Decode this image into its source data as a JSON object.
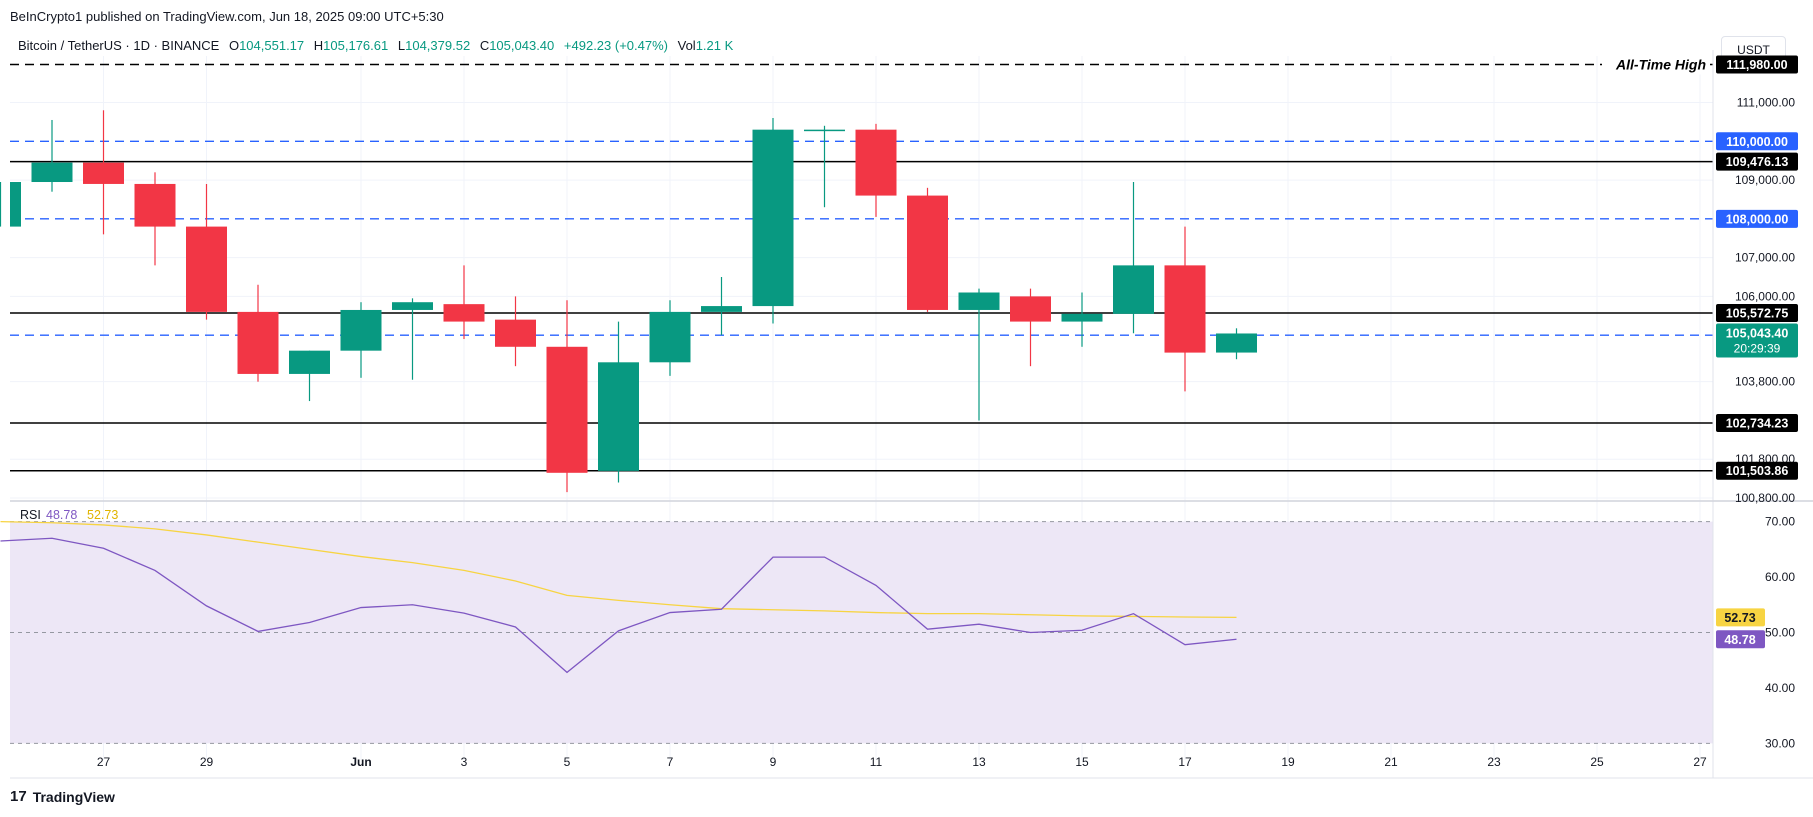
{
  "publisher_text": "BeInCrypto1 published on TradingView.com, Jun 18, 2025 09:00 UTC+5:30",
  "header": {
    "symbol": "Bitcoin / TetherUS · 1D · BINANCE",
    "open_label": "O",
    "open": "104,551.17",
    "high_label": "H",
    "high": "105,176.61",
    "low_label": "L",
    "low": "104,379.52",
    "close_label": "C",
    "close": "105,043.40",
    "change": "+492.23 (+0.47%)",
    "vol_label": "Vol",
    "vol": "1.21 K"
  },
  "currency": "USDT",
  "footer_brand": "TradingView",
  "colors": {
    "up": "#089981",
    "down": "#f23645",
    "blue_line": "#2962ff",
    "rsi": "#7e57c2",
    "rsi_ma": "#f7d442",
    "rsi_band": "#ede7f6"
  },
  "chart_data": {
    "type": "candlestick",
    "price_ylim": [
      100800,
      112200
    ],
    "x_ticks": [
      {
        "date": "2025-05-27",
        "label": "27"
      },
      {
        "date": "2025-05-29",
        "label": "29"
      },
      {
        "date": "2025-06-01",
        "label": "Jun"
      },
      {
        "date": "2025-06-03",
        "label": "3"
      },
      {
        "date": "2025-06-05",
        "label": "5"
      },
      {
        "date": "2025-06-07",
        "label": "7"
      },
      {
        "date": "2025-06-09",
        "label": "9"
      },
      {
        "date": "2025-06-11",
        "label": "11"
      },
      {
        "date": "2025-06-13",
        "label": "13"
      },
      {
        "date": "2025-06-15",
        "label": "15"
      },
      {
        "date": "2025-06-17",
        "label": "17"
      },
      {
        "date": "2025-06-19",
        "label": "19"
      },
      {
        "date": "2025-06-21",
        "label": "21"
      },
      {
        "date": "2025-06-23",
        "label": "23"
      },
      {
        "date": "2025-06-25",
        "label": "25"
      },
      {
        "date": "2025-06-27",
        "label": "27"
      }
    ],
    "price_ticks": [
      "111,000.00",
      "109,000.00",
      "107,000.00",
      "106,000.00",
      "103,800.00",
      "101,800.00",
      "100,800.00"
    ],
    "candles": [
      {
        "date": "2025-05-25",
        "open": 107800,
        "high": 108950,
        "low": 107800,
        "close": 108950
      },
      {
        "date": "2025-05-26",
        "open": 108950,
        "high": 110550,
        "low": 108700,
        "close": 109450
      },
      {
        "date": "2025-05-27",
        "open": 109450,
        "high": 110800,
        "low": 107600,
        "close": 108900
      },
      {
        "date": "2025-05-28",
        "open": 108900,
        "high": 109200,
        "low": 106800,
        "close": 107800
      },
      {
        "date": "2025-05-29",
        "open": 107800,
        "high": 108900,
        "low": 105400,
        "close": 105600
      },
      {
        "date": "2025-05-30",
        "open": 105600,
        "high": 106300,
        "low": 103800,
        "close": 104000
      },
      {
        "date": "2025-05-31",
        "open": 104000,
        "high": 104600,
        "low": 103300,
        "close": 104600
      },
      {
        "date": "2025-06-01",
        "open": 104600,
        "high": 105850,
        "low": 103900,
        "close": 105650
      },
      {
        "date": "2025-06-02",
        "open": 105650,
        "high": 105950,
        "low": 103850,
        "close": 105850
      },
      {
        "date": "2025-06-03",
        "open": 105800,
        "high": 106800,
        "low": 104900,
        "close": 105350
      },
      {
        "date": "2025-06-04",
        "open": 105400,
        "high": 106000,
        "low": 104200,
        "close": 104700
      },
      {
        "date": "2025-06-05",
        "open": 104700,
        "high": 105900,
        "low": 100950,
        "close": 101450
      },
      {
        "date": "2025-06-06",
        "open": 101500,
        "high": 105350,
        "low": 101200,
        "close": 104300
      },
      {
        "date": "2025-06-07",
        "open": 104300,
        "high": 105900,
        "low": 103950,
        "close": 105600
      },
      {
        "date": "2025-06-08",
        "open": 105600,
        "high": 106500,
        "low": 105000,
        "close": 105750
      },
      {
        "date": "2025-06-09",
        "open": 105750,
        "high": 110600,
        "low": 105300,
        "close": 110300
      },
      {
        "date": "2025-06-10",
        "open": 110300,
        "high": 110400,
        "low": 108300,
        "close": 110300
      },
      {
        "date": "2025-06-11",
        "open": 110300,
        "high": 110450,
        "low": 108050,
        "close": 108600
      },
      {
        "date": "2025-06-12",
        "open": 108600,
        "high": 108800,
        "low": 105600,
        "close": 105650
      },
      {
        "date": "2025-06-13",
        "open": 105650,
        "high": 106200,
        "low": 102800,
        "close": 106100
      },
      {
        "date": "2025-06-14",
        "open": 106000,
        "high": 106200,
        "low": 104200,
        "close": 105350
      },
      {
        "date": "2025-06-15",
        "open": 105350,
        "high": 106100,
        "low": 104700,
        "close": 105550
      },
      {
        "date": "2025-06-16",
        "open": 105550,
        "high": 108950,
        "low": 105050,
        "close": 106800
      },
      {
        "date": "2025-06-17",
        "open": 106800,
        "high": 107800,
        "low": 103550,
        "close": 104550
      },
      {
        "date": "2025-06-18",
        "open": 104551.17,
        "high": 105176.61,
        "low": 104379.52,
        "close": 105043.4
      }
    ],
    "levels": [
      {
        "value": 111980,
        "label": "111,980.00",
        "style": "dashed",
        "color": "#000000",
        "annotation": "All-Time High"
      },
      {
        "value": 110000,
        "label": "110,000.00",
        "style": "dashed",
        "color": "#2962ff"
      },
      {
        "value": 109476.13,
        "label": "109,476.13",
        "style": "solid",
        "color": "#000000"
      },
      {
        "value": 108000,
        "label": "108,000.00",
        "style": "dashed",
        "color": "#2962ff"
      },
      {
        "value": 105572.75,
        "label": "105,572.75",
        "style": "solid",
        "color": "#000000"
      },
      {
        "value": 105000,
        "label": "105,000.00",
        "style": "dashed",
        "color": "#2962ff"
      },
      {
        "value": 102734.23,
        "label": "102,734.23",
        "style": "solid",
        "color": "#000000"
      },
      {
        "value": 101503.86,
        "label": "101,503.86",
        "style": "solid",
        "color": "#000000"
      }
    ],
    "last_price": {
      "value": 105043.4,
      "label": "105,043.40",
      "countdown": "20:29:39"
    },
    "rsi": {
      "title": "RSI",
      "value": "48.78",
      "ma_value": "52.73",
      "ylim": [
        27,
        73
      ],
      "band": [
        30,
        70
      ],
      "ticks": [
        "70.00",
        "60.00",
        "50.00",
        "40.00",
        "30.00"
      ],
      "dates": [
        "2025-05-25",
        "2025-05-26",
        "2025-05-27",
        "2025-05-28",
        "2025-05-29",
        "2025-05-30",
        "2025-05-31",
        "2025-06-01",
        "2025-06-02",
        "2025-06-03",
        "2025-06-04",
        "2025-06-05",
        "2025-06-06",
        "2025-06-07",
        "2025-06-08",
        "2025-06-09",
        "2025-06-10",
        "2025-06-11",
        "2025-06-12",
        "2025-06-13",
        "2025-06-14",
        "2025-06-15",
        "2025-06-16",
        "2025-06-17",
        "2025-06-18"
      ],
      "values": [
        66.5,
        67.0,
        65.2,
        61.2,
        54.8,
        50.2,
        51.8,
        54.5,
        55.0,
        53.5,
        51.0,
        42.8,
        50.3,
        53.6,
        54.2,
        63.6,
        63.6,
        58.5,
        50.6,
        51.5,
        50.0,
        50.4,
        53.4,
        47.8,
        48.78
      ],
      "ma_values": [
        70.0,
        69.8,
        69.4,
        68.7,
        67.6,
        66.3,
        65.0,
        63.7,
        62.6,
        61.2,
        59.3,
        56.7,
        55.8,
        55.0,
        54.3,
        54.1,
        53.9,
        53.6,
        53.4,
        53.4,
        53.2,
        53.0,
        52.9,
        52.8,
        52.73
      ]
    }
  }
}
